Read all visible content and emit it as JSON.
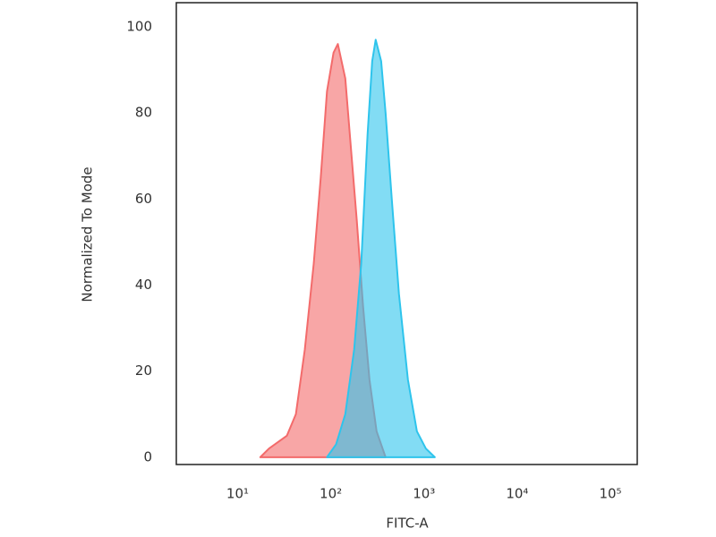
{
  "chart_data": {
    "type": "histogram-overlay",
    "xlabel": "FITC-A",
    "ylabel": "Normalized To Mode",
    "xscale": "log",
    "xlim": [
      2.2,
      194000
    ],
    "xticks": [
      {
        "value": 10,
        "label": "10¹"
      },
      {
        "value": 100,
        "label": "10²"
      },
      {
        "value": 1000,
        "label": "10³"
      },
      {
        "value": 10000,
        "label": "10⁴"
      },
      {
        "value": 100000,
        "label": "10⁵"
      }
    ],
    "ylim": [
      -1.7,
      105.6
    ],
    "yticks": [
      0,
      20,
      40,
      60,
      80,
      100
    ],
    "grid": false,
    "series": [
      {
        "color": "#f36b6b",
        "x": [
          17.5,
          21.7,
          33.8,
          42.2,
          52.6,
          65.6,
          78,
          91,
          107,
          119,
          143,
          167,
          190,
          222,
          260,
          310,
          387
        ],
        "values": [
          0,
          2,
          5,
          10,
          25,
          45,
          65,
          85,
          94,
          96,
          88,
          70,
          55,
          35,
          18,
          6,
          0
        ]
      },
      {
        "color": "#2ec4ec",
        "x": [
          91,
          114,
          143,
          178,
          212,
          248,
          278,
          303,
          347,
          387,
          451,
          538,
          672,
          839,
          1047,
          1306
        ],
        "values": [
          0,
          3,
          10,
          25,
          45,
          75,
          92,
          97,
          92,
          80,
          60,
          38,
          18,
          6,
          2,
          0
        ]
      }
    ]
  }
}
